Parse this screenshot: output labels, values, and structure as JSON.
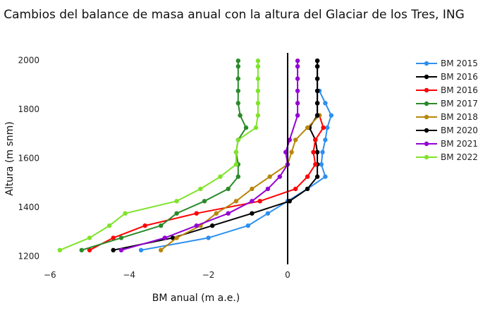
{
  "chart_data": {
    "type": "line",
    "title": "Cambios del balance de masa anual con la altura del Glaciar de los Tres, ING",
    "xlabel": "BM anual (m a.e.)",
    "ylabel": "Altura (m snm)",
    "xlim": [
      -6,
      1.3
    ],
    "ylim": [
      1170,
      2050
    ],
    "xticks": [
      -6,
      -4,
      -2,
      0
    ],
    "xtick_labels": [
      "−6",
      "−4",
      "−2",
      "0"
    ],
    "yticks": [
      1200,
      1400,
      1600,
      1800,
      2000
    ],
    "ytick_labels": [
      "1200",
      "1400",
      "1600",
      "1800",
      "2000"
    ],
    "grid": false,
    "zero_line": true,
    "legend_position": "top-right",
    "series": [
      {
        "name": "BM 2015",
        "color": "#2e8ff0",
        "x": [
          -3.7,
          -2.0,
          -1.0,
          -0.5,
          0.0,
          0.5,
          0.95,
          0.85,
          0.88,
          0.95,
          1.0,
          1.1,
          0.95,
          0.8
        ],
        "y": [
          1225,
          1275,
          1325,
          1375,
          1425,
          1475,
          1525,
          1575,
          1625,
          1675,
          1725,
          1775,
          1825,
          1875
        ]
      },
      {
        "name": "BM 2016",
        "color": "#000000",
        "x": [
          -4.4,
          -2.9,
          -1.9,
          -0.9,
          0.05,
          0.5,
          0.75,
          0.75,
          0.75,
          0.7,
          0.55,
          0.75,
          0.75,
          0.75,
          0.75,
          0.75,
          0.75
        ],
        "y": [
          1225,
          1275,
          1325,
          1375,
          1425,
          1475,
          1525,
          1575,
          1625,
          1675,
          1725,
          1775,
          1825,
          1875,
          1925,
          1975,
          1998
        ]
      },
      {
        "name": "BM 2016",
        "color": "#ff0000",
        "x": [
          -5.0,
          -4.4,
          -3.6,
          -2.3,
          -0.7,
          0.2,
          0.5,
          0.7,
          0.65,
          0.7,
          0.9,
          0.8
        ],
        "y": [
          1225,
          1275,
          1325,
          1375,
          1425,
          1475,
          1525,
          1575,
          1625,
          1675,
          1725,
          1775
        ]
      },
      {
        "name": "BM 2017",
        "color": "#2a8a2a",
        "x": [
          -5.2,
          -4.2,
          -3.2,
          -2.8,
          -2.1,
          -1.5,
          -1.25,
          -1.25,
          -1.3,
          -1.25,
          -1.05,
          -1.2,
          -1.25,
          -1.25,
          -1.25,
          -1.25,
          -1.25
        ],
        "y": [
          1225,
          1275,
          1325,
          1375,
          1425,
          1475,
          1525,
          1575,
          1625,
          1675,
          1725,
          1775,
          1825,
          1875,
          1925,
          1975,
          1998
        ]
      },
      {
        "name": "BM 2018",
        "color": "#b8860b",
        "x": [
          -3.2,
          -2.8,
          -2.2,
          -1.8,
          -1.3,
          -0.9,
          -0.45,
          0.0,
          0.1,
          0.2,
          0.5,
          0.8
        ],
        "y": [
          1225,
          1275,
          1325,
          1375,
          1425,
          1475,
          1525,
          1575,
          1625,
          1675,
          1725,
          1775
        ]
      },
      {
        "name": "BM 2020",
        "color": "#000000",
        "x": [
          0.75,
          0.75,
          0.75,
          0.75,
          0.75,
          0.75
        ],
        "y": [
          1775,
          1825,
          1875,
          1925,
          1975,
          1998
        ]
      },
      {
        "name": "BM 2021",
        "color": "#9400d3",
        "x": [
          -4.2,
          -3.1,
          -2.3,
          -1.5,
          -0.9,
          -0.5,
          -0.2,
          0.0,
          -0.05,
          0.05,
          0.25,
          0.25,
          0.25,
          0.25,
          0.25,
          0.25
        ],
        "y": [
          1225,
          1275,
          1325,
          1375,
          1425,
          1475,
          1525,
          1575,
          1625,
          1675,
          1775,
          1825,
          1875,
          1925,
          1975,
          1998
        ]
      },
      {
        "name": "BM 2022",
        "color": "#7fe32a",
        "x": [
          -5.75,
          -5.0,
          -4.5,
          -4.1,
          -2.8,
          -2.2,
          -1.7,
          -1.3,
          -1.3,
          -1.25,
          -0.8,
          -0.75,
          -0.75,
          -0.75,
          -0.75,
          -0.75,
          -0.75
        ],
        "y": [
          1225,
          1275,
          1325,
          1375,
          1425,
          1475,
          1525,
          1575,
          1625,
          1675,
          1725,
          1775,
          1825,
          1875,
          1925,
          1975,
          1998
        ]
      }
    ]
  }
}
